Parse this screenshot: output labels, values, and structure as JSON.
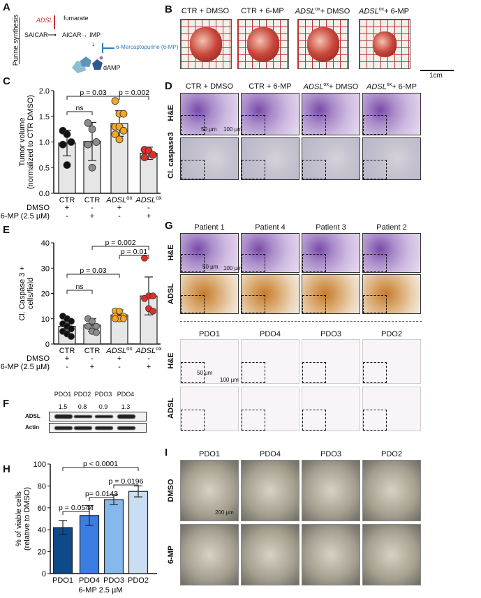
{
  "panels": {
    "A": "A",
    "B": "B",
    "C": "C",
    "D": "D",
    "E": "E",
    "F": "F",
    "G": "G",
    "H": "H",
    "I": "I"
  },
  "panelA": {
    "side_label": "Purine synthesis",
    "enzyme": "ADSL",
    "byproduct": "fumarate",
    "saicar": "SAICAR",
    "aicar": "AICAR",
    "imp": "IMP",
    "drug": "6-Mercaptopurine (6-MP)",
    "product": "dAMP"
  },
  "panelB": {
    "headers": [
      "CTR + DMSO",
      "CTR + 6-MP",
      "ADSL",
      "+ DMSO",
      "ADSL",
      "+ 6-MP"
    ],
    "sup": "ox",
    "scale": "1cm"
  },
  "panelD": {
    "headers": [
      "CTR + DMSO",
      "CTR + 6-MP",
      "ADSL",
      "+ DMSO",
      "ADSL",
      "+ 6-MP"
    ],
    "sup": "ox",
    "rows": [
      "H&E",
      "Cl. caspase3"
    ],
    "scale1": "50 µm",
    "scale2": "100 µm"
  },
  "panelG": {
    "patients": [
      "Patient 1",
      "Patient 4",
      "Patient 3",
      "Patient 2"
    ],
    "pdos": [
      "PDO1",
      "PDO4",
      "PDO3",
      "PDO2"
    ],
    "rows": [
      "H&E",
      "ADSL",
      "H&E",
      "ADSL"
    ],
    "scale1": "50 µm",
    "scale2": "100 µm"
  },
  "panelI": {
    "pdos": [
      "PDO1",
      "PDO4",
      "PDO3",
      "PDO2"
    ],
    "rows": [
      "DMSO",
      "6-MP"
    ],
    "scale": "200 µm"
  },
  "panelF": {
    "lanes": [
      "PDO1",
      "PDO2",
      "PDO3",
      "PDO4"
    ],
    "quant": [
      "1.5",
      "0.8",
      "0.9",
      "1.3"
    ],
    "rows": [
      "ADSL",
      "Actin"
    ],
    "adsl_intensity": [
      1.5,
      0.8,
      0.9,
      1.3
    ]
  },
  "conditions": {
    "rows": [
      "DMSO",
      "6-MP (2.5 µM)"
    ],
    "dmso": [
      "+",
      "-",
      "+",
      "-"
    ],
    "mp": [
      "-",
      "+",
      "-",
      "+"
    ]
  },
  "chart_data": [
    {
      "id": "C",
      "type": "bar",
      "title": "",
      "ylabel": "Tumor volume",
      "ylabel2": "(normalized to CTR DMSO)",
      "ylim": [
        0,
        2.0
      ],
      "yticks": [
        "0.0",
        "0.5",
        "1.0",
        "1.5",
        "2.0"
      ],
      "ytick_values": [
        0,
        0.5,
        1.0,
        1.5,
        2.0
      ],
      "categories": [
        "CTR",
        "CTR",
        "ADSL",
        "ADSL"
      ],
      "category_sup": [
        "",
        "",
        "ox",
        "ox"
      ],
      "means": [
        0.98,
        1.01,
        1.36,
        0.78
      ],
      "sd": [
        0.25,
        0.37,
        0.25,
        0.12
      ],
      "points": [
        [
          1.22,
          1.15,
          1.0,
          0.95,
          0.55
        ],
        [
          1.37,
          1.25,
          1.0,
          0.95,
          0.5
        ],
        [
          1.8,
          1.55,
          1.55,
          1.3,
          1.3,
          1.22,
          1.15,
          1.05
        ],
        [
          0.85,
          0.83,
          0.75,
          0.7
        ]
      ],
      "point_colors": [
        "#111111",
        "#8c8c8c",
        "#f5a623",
        "#e0302a"
      ],
      "bar_color": "#e6e6e6",
      "comparisons": [
        {
          "a": 0,
          "b": 1,
          "label": "ns"
        },
        {
          "a": 0,
          "b": 2,
          "label": "p = 0.03"
        },
        {
          "a": 2,
          "b": 3,
          "label": "p = 0.002"
        }
      ]
    },
    {
      "id": "E",
      "type": "bar",
      "title": "",
      "ylabel": "Cl. Caspase 3 +",
      "ylabel2": "cells/field",
      "ylim": [
        0,
        40
      ],
      "yticks": [
        "0",
        "10",
        "20",
        "30",
        "40"
      ],
      "ytick_values": [
        0,
        10,
        20,
        30,
        40
      ],
      "categories": [
        "CTR",
        "CTR",
        "ADSL",
        "ADSL"
      ],
      "category_sup": [
        "",
        "",
        "ox",
        "ox"
      ],
      "means": [
        7,
        7.5,
        11.5,
        19
      ],
      "sd": [
        3,
        2.5,
        2,
        7.5
      ],
      "points": [
        [
          11,
          10,
          9,
          8,
          7,
          6,
          5,
          4,
          3
        ],
        [
          10,
          9,
          7,
          7,
          5,
          4.5
        ],
        [
          13,
          13,
          11,
          11,
          10,
          10,
          10
        ],
        [
          34,
          19,
          19,
          18,
          14,
          13
        ]
      ],
      "point_colors": [
        "#111111",
        "#8c8c8c",
        "#f5a623",
        "#e0302a"
      ],
      "bar_color": "#e6e6e6",
      "comparisons": [
        {
          "a": 0,
          "b": 1,
          "label": "ns"
        },
        {
          "a": 0,
          "b": 2,
          "label": "p = 0.03"
        },
        {
          "a": 2,
          "b": 3,
          "label": "p = 0.01"
        },
        {
          "a": 1,
          "b": 3,
          "label": "p = 0.002"
        }
      ]
    },
    {
      "id": "H",
      "type": "bar",
      "title": "",
      "xlabel": "6-MP 2.5 µM",
      "ylabel": "% of viable cells",
      "ylabel2": "(relative to DMSO)",
      "ylim": [
        0,
        100
      ],
      "yticks": [
        "0",
        "20",
        "40",
        "60",
        "80",
        "100"
      ],
      "ytick_values": [
        0,
        20,
        40,
        60,
        80,
        100
      ],
      "categories": [
        "PDO1",
        "PDO4",
        "PDO3",
        "PDO2"
      ],
      "category_sup": [
        "",
        "",
        "",
        ""
      ],
      "means": [
        42,
        53,
        67.5,
        75
      ],
      "sd": [
        6.5,
        9,
        4.5,
        5
      ],
      "points": [
        [],
        [],
        [],
        []
      ],
      "bar_colors": [
        "#0d4a8a",
        "#3b7de0",
        "#86b8ee",
        "#c9ddf3"
      ],
      "comparisons": [
        {
          "a": 0,
          "b": 1,
          "label": "p = 0.0544"
        },
        {
          "a": 1,
          "b": 2,
          "label": "p= 0.0143"
        },
        {
          "a": 2,
          "b": 3,
          "label": "p = 0.0196"
        },
        {
          "a": 0,
          "b": 3,
          "label": "p < 0.0001"
        }
      ]
    }
  ]
}
